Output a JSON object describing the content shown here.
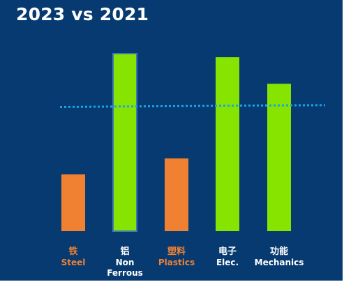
{
  "chart_data": {
    "type": "bar",
    "title": "2023 vs 2021",
    "categories": [
      {
        "zh": "铁",
        "en": "Steel"
      },
      {
        "zh": "铝",
        "en": "Non\nFerrous"
      },
      {
        "zh": "塑料",
        "en": "Plastics"
      },
      {
        "zh": "电子",
        "en": "Elec."
      },
      {
        "zh": "功能",
        "en": "Mechanics"
      }
    ],
    "values": [
      32,
      100,
      41,
      98,
      83
    ],
    "ylim": [
      0,
      100
    ],
    "baseline": {
      "style": "dotted",
      "from": 70,
      "to": 71
    },
    "bar_colors": [
      "#f08133",
      "#86e400",
      "#f08133",
      "#86e400",
      "#86e400"
    ],
    "label_colors": [
      "#f08133",
      "#ffffff",
      "#f08133",
      "#ffffff",
      "#ffffff"
    ],
    "highlight_index": 1,
    "colors": {
      "background": "#063a70",
      "baseline": "#1aa3e8",
      "highlight_border": "#3b78b5"
    }
  }
}
